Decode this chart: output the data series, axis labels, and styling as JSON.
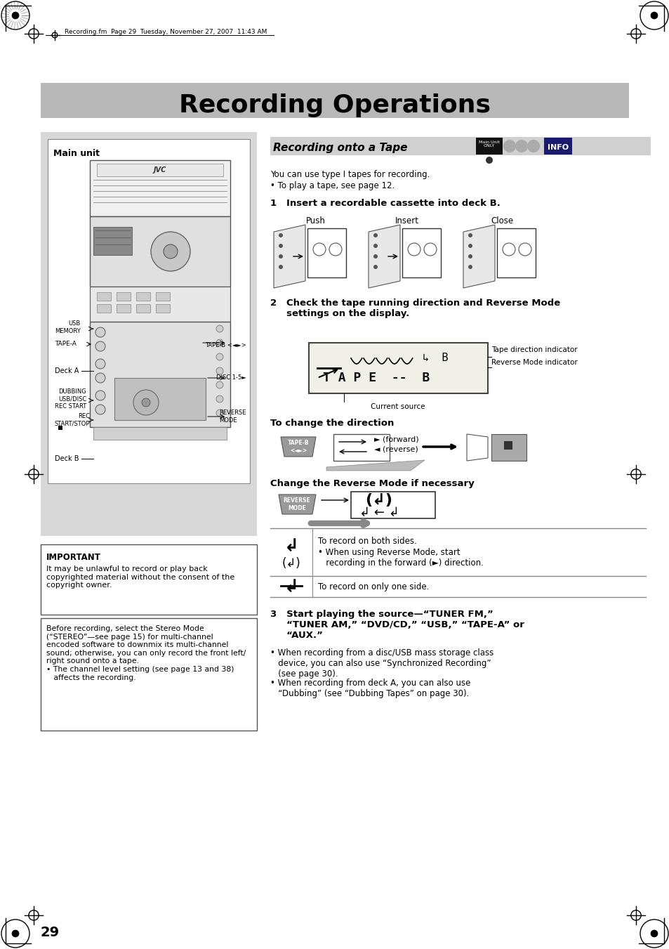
{
  "page_bg": "#ffffff",
  "header_bar_color": "#b8b8b8",
  "header_text": "Recording Operations",
  "header_fontsize": 26,
  "header_text_color": "#000000",
  "page_number": "29",
  "file_info": "Recording.fm  Page 29  Tuesday, November 27, 2007  11:43 AM",
  "section_title": "Recording onto a Tape",
  "intro_text1": "You can use type I tapes for recording.",
  "intro_text2": "• To play a tape, see page 12.",
  "step1_title": "1   Insert a recordable cassette into deck B.",
  "step1_labels": [
    "Push",
    "Insert",
    "Close"
  ],
  "step2_title": "2   Check the tape running direction and Reverse Mode\n     settings on the display.",
  "step2_indicators": [
    "Tape direction indicator",
    "Reverse Mode indicator",
    "Current source"
  ],
  "direction_title": "To change the direction",
  "direction_labels": [
    "► (forward)",
    "◄ (reverse)"
  ],
  "reverse_mode_title": "Change the Reverse Mode if necessary",
  "table_row1_icon1": "↲",
  "table_row1_icon2": "( ↲ )",
  "table_row1_text1": "To record on both sides.",
  "table_row1_text2": "• When using Reverse Mode, start\n   recording in the forward (►) direction.",
  "table_row2_icon": "↲",
  "table_row2_text": "To record on only one side.",
  "step3_title": "3   Start playing the source—“TUNER FM,”\n     “TUNER AM,” “DVD/CD,” “USB,” “TAPE-A” or\n     “AUX.”",
  "step3_bullet1": "• When recording from a disc/USB mass storage class\n   device, you can also use “Synchronized Recording”\n   (see page 30).",
  "step3_bullet2": "• When recording from deck A, you can also use\n   “Dubbing” (see “Dubbing Tapes” on page 30).",
  "important_title": "IMPORTANT",
  "important_text": "It may be unlawful to record or play back\ncopyrighted material without the consent of the\ncopyright owner.",
  "note_text": "Before recording, select the Stereo Mode\n(“STEREO”—see page 15) for multi-channel\nencoded software to downmix its multi-channel\nsound; otherwise, you can only record the front left/\nright sound onto a tape.\n• The channel level setting (see page 13 and 38)\n   affects the recording.",
  "main_unit_label": "Main unit"
}
